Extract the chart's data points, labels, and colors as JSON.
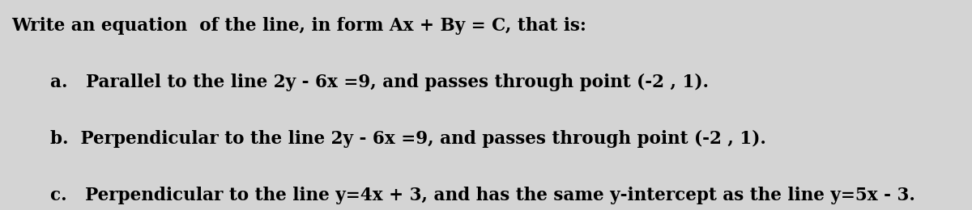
{
  "bg_color": "#d4d4d4",
  "title_line": "Write an equation  of the line, in form Ax + By = C, that is:",
  "line_a": "a.   Parallel to the line 2y - 6x =9, and passes through point (-2 , 1).",
  "line_b": "b.  Perpendicular to the line 2y - 6x =9, and passes through point (-2 , 1).",
  "line_c": "c.   Perpendicular to the line y=4x + 3, and has the same y-intercept as the line y=5x - 3.",
  "cursor": "T",
  "font_size": 15.5,
  "figsize": [
    12.0,
    2.6
  ],
  "dpi": 100
}
